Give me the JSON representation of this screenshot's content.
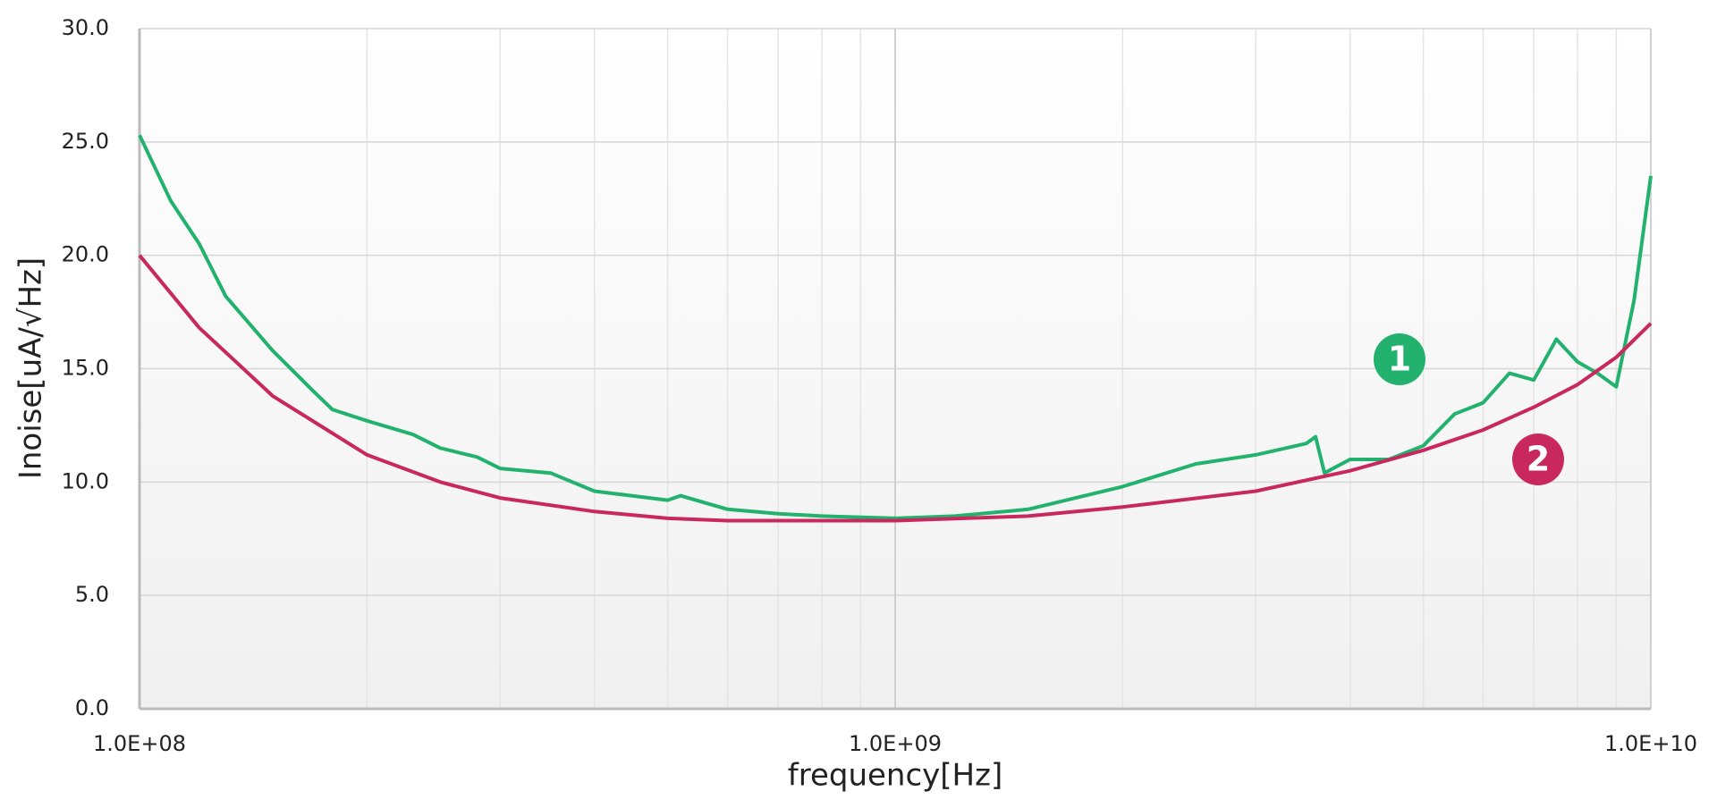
{
  "chart_data": {
    "type": "line",
    "xlabel": "frequency[Hz]",
    "ylabel": "Inoise[uA/√Hz]",
    "xscale": "log",
    "grid": true,
    "xlim": [
      100000000,
      10000000000
    ],
    "xticks": [
      {
        "value": 100000000,
        "label": "1.0E+08"
      },
      {
        "value": 1000000000,
        "label": "1.0E+09"
      },
      {
        "value": 10000000000,
        "label": "1.0E+10"
      }
    ],
    "ylim": [
      0,
      30
    ],
    "yticks": [
      {
        "value": 0,
        "label": "0.0"
      },
      {
        "value": 5,
        "label": "5.0"
      },
      {
        "value": 10,
        "label": "10.0"
      },
      {
        "value": 15,
        "label": "15.0"
      },
      {
        "value": 20,
        "label": "20.0"
      },
      {
        "value": 25,
        "label": "25.0"
      },
      {
        "value": 30,
        "label": "30.0"
      }
    ],
    "series": [
      {
        "name": "1",
        "color": "#23b26d",
        "x": [
          100000000,
          110000000,
          120000000,
          130000000,
          150000000,
          170000000,
          180000000,
          200000000,
          230000000,
          250000000,
          280000000,
          300000000,
          350000000,
          400000000,
          500000000,
          520000000,
          600000000,
          700000000,
          800000000,
          1000000000,
          1200000000,
          1500000000,
          2000000000,
          2500000000,
          3000000000,
          3500000000,
          3600000000,
          3700000000,
          4000000000,
          4500000000,
          5000000000,
          5500000000,
          6000000000,
          6500000000,
          7000000000,
          7500000000,
          8000000000,
          8500000000,
          9000000000,
          9500000000,
          10000000000
        ],
        "values": [
          25.3,
          22.4,
          20.5,
          18.2,
          15.8,
          14.0,
          13.2,
          12.7,
          12.1,
          11.5,
          11.1,
          10.6,
          10.4,
          9.6,
          9.2,
          9.4,
          8.8,
          8.6,
          8.5,
          8.4,
          8.5,
          8.8,
          9.8,
          10.8,
          11.2,
          11.7,
          12.0,
          10.4,
          11.0,
          11.0,
          11.6,
          13.0,
          13.5,
          14.8,
          14.5,
          16.3,
          15.3,
          14.8,
          14.2,
          18.0,
          23.5
        ]
      },
      {
        "name": "2",
        "color": "#c8285e",
        "x": [
          100000000,
          120000000,
          150000000,
          200000000,
          250000000,
          300000000,
          400000000,
          500000000,
          600000000,
          1000000000,
          1500000000,
          2000000000,
          3000000000,
          4000000000,
          5000000000,
          6000000000,
          7000000000,
          8000000000,
          9000000000,
          10000000000
        ],
        "values": [
          20.0,
          16.8,
          13.8,
          11.2,
          10.0,
          9.3,
          8.7,
          8.4,
          8.3,
          8.3,
          8.5,
          8.9,
          9.6,
          10.5,
          11.4,
          12.3,
          13.3,
          14.3,
          15.5,
          17.0
        ]
      }
    ]
  }
}
